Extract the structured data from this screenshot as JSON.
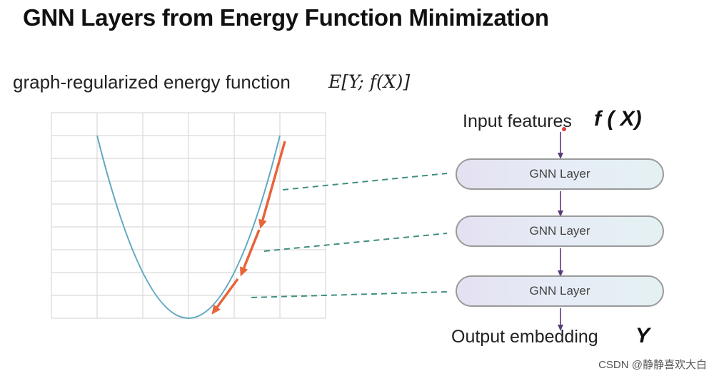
{
  "title": "GNN Layers from Energy Function Minimization",
  "subtitle": "graph-regularized energy function",
  "formula": "E[Y; f(X)]",
  "input": {
    "label": "Input features",
    "math": "f ( X)"
  },
  "layers": [
    {
      "label": "GNN Layer"
    },
    {
      "label": "GNN Layer"
    },
    {
      "label": "GNN Layer"
    }
  ],
  "output": {
    "label": "Output embedding",
    "math": "Y"
  },
  "watermark": "CSDN @静静喜欢大白",
  "colors": {
    "curve": "#5fa9c0",
    "arrow": "#e8643a",
    "dashed": "#3f8f7f",
    "flow_arrow": "#5b3a7a",
    "grid": "#d9d9d9"
  }
}
